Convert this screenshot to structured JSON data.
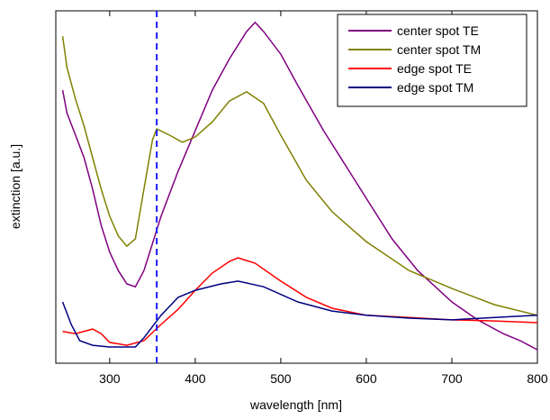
{
  "chart_data": {
    "type": "line",
    "xlabel": "wavelength [nm]",
    "ylabel": "extinction [a.u.]",
    "xlim": [
      237,
      800
    ],
    "xticks": [
      300,
      400,
      500,
      600,
      700,
      800
    ],
    "ylim": [
      0,
      100
    ],
    "marker_x": 355,
    "marker_color": "#1a1aff",
    "legend": "upper right",
    "series": [
      {
        "name": "center spot TE",
        "color": "#800080",
        "x": [
          245,
          250,
          260,
          270,
          280,
          290,
          300,
          310,
          320,
          330,
          340,
          350,
          360,
          380,
          400,
          420,
          440,
          460,
          470,
          480,
          500,
          520,
          550,
          580,
          600,
          630,
          660,
          700,
          730,
          760,
          780,
          800
        ],
        "values": [
          77.5,
          71,
          64.7,
          58.3,
          49.4,
          39.1,
          31.5,
          26.3,
          22.5,
          21.7,
          26.3,
          34,
          41.7,
          54.5,
          66,
          77.5,
          86.4,
          94.1,
          96.7,
          94.1,
          87.7,
          78.8,
          66,
          54.5,
          46.8,
          35.3,
          26.3,
          17.4,
          12.3,
          8.4,
          6.4,
          3.8
        ]
      },
      {
        "name": "center spot TM",
        "color": "#808000",
        "x": [
          245,
          250,
          260,
          270,
          280,
          290,
          300,
          310,
          320,
          330,
          340,
          350,
          355,
          370,
          385,
          400,
          420,
          440,
          460,
          480,
          500,
          530,
          560,
          600,
          650,
          700,
          750,
          800
        ],
        "values": [
          92.8,
          83.9,
          74.9,
          67.3,
          58.3,
          49.4,
          41.7,
          36.1,
          33.2,
          35.3,
          49.4,
          63.4,
          66.5,
          64.7,
          62.7,
          64.2,
          68.5,
          74.4,
          77,
          73.7,
          64.7,
          51.9,
          43,
          34.5,
          26.3,
          21.2,
          16.6,
          13.6
        ]
      },
      {
        "name": "edge spot TE",
        "color": "#ff0000",
        "x": [
          245,
          260,
          280,
          290,
          300,
          320,
          340,
          360,
          380,
          400,
          420,
          440,
          450,
          470,
          500,
          530,
          560,
          600,
          650,
          700,
          750,
          800
        ],
        "values": [
          9,
          8.4,
          9.7,
          8.4,
          5.9,
          5.1,
          6.4,
          11,
          15.3,
          20.7,
          25.6,
          28.9,
          29.9,
          28.4,
          23.3,
          18.7,
          15.6,
          13.6,
          13,
          12.3,
          12,
          11.5
        ]
      },
      {
        "name": "edge spot TM",
        "color": "#000080",
        "x": [
          245,
          255,
          265,
          280,
          300,
          330,
          340,
          360,
          380,
          400,
          430,
          450,
          480,
          520,
          560,
          600,
          650,
          700,
          750,
          800
        ],
        "values": [
          17.4,
          11,
          6.4,
          5.1,
          4.6,
          4.6,
          7.2,
          13.6,
          18.7,
          20.7,
          22.5,
          23.3,
          21.7,
          17.4,
          14.8,
          13.6,
          12.8,
          12.3,
          13,
          13.6
        ]
      }
    ]
  }
}
